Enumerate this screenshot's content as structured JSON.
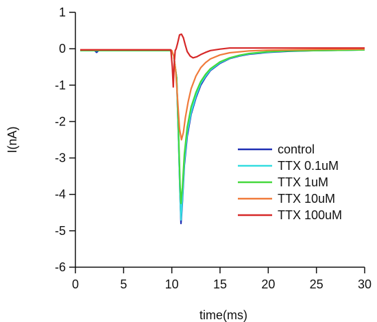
{
  "chart_data": {
    "type": "line",
    "title": "",
    "xlabel": "time(ms)",
    "ylabel": "I(nA)",
    "xlim": [
      0,
      30
    ],
    "ylim": [
      -6,
      1
    ],
    "x_ticks": [
      0,
      5,
      10,
      15,
      20,
      25,
      30
    ],
    "y_ticks": [
      1,
      0,
      -1,
      -2,
      -3,
      -4,
      -5,
      -6
    ],
    "grid": false,
    "legend_position": "right",
    "series": [
      {
        "name": "control",
        "color": "#1f2fb4",
        "x": [
          0.5,
          2.0,
          2.2,
          2.4,
          4.0,
          6.0,
          8.0,
          9.8,
          10.0,
          10.2,
          10.5,
          10.7,
          10.85,
          10.95,
          11.1,
          11.3,
          11.6,
          12.0,
          12.5,
          13.0,
          13.5,
          14.0,
          15.0,
          16.0,
          17.0,
          18.0,
          20.0,
          22.0,
          25.0,
          28.0,
          30.0
        ],
        "y": [
          -0.05,
          -0.05,
          -0.1,
          -0.05,
          -0.05,
          -0.05,
          -0.05,
          -0.05,
          -0.07,
          -0.2,
          -0.8,
          -2.5,
          -4.0,
          -4.8,
          -4.2,
          -3.2,
          -2.4,
          -1.8,
          -1.35,
          -1.0,
          -0.78,
          -0.6,
          -0.4,
          -0.27,
          -0.2,
          -0.15,
          -0.1,
          -0.07,
          -0.05,
          -0.04,
          -0.03
        ]
      },
      {
        "name": "TTX 0.1uM",
        "color": "#33dde0",
        "x": [
          0.5,
          4.0,
          8.0,
          9.8,
          10.0,
          10.2,
          10.5,
          10.7,
          10.85,
          10.95,
          11.1,
          11.3,
          11.6,
          12.0,
          12.5,
          13.0,
          13.5,
          14.0,
          15.0,
          16.0,
          17.0,
          18.0,
          20.0,
          22.0,
          25.0,
          28.0,
          30.0
        ],
        "y": [
          -0.05,
          -0.05,
          -0.05,
          -0.05,
          -0.07,
          -0.2,
          -0.8,
          -2.5,
          -4.0,
          -4.7,
          -4.1,
          -3.1,
          -2.3,
          -1.75,
          -1.3,
          -0.95,
          -0.75,
          -0.58,
          -0.38,
          -0.26,
          -0.19,
          -0.14,
          -0.09,
          -0.06,
          -0.05,
          -0.04,
          -0.03
        ]
      },
      {
        "name": "TTX 1uM",
        "color": "#44d83c",
        "x": [
          0.5,
          4.0,
          8.0,
          9.8,
          10.0,
          10.2,
          10.5,
          10.7,
          10.85,
          10.95,
          11.1,
          11.3,
          11.6,
          12.0,
          12.5,
          13.0,
          13.5,
          14.0,
          15.0,
          16.0,
          17.0,
          18.0,
          20.0,
          22.0,
          25.0,
          28.0,
          30.0
        ],
        "y": [
          -0.05,
          -0.05,
          -0.05,
          -0.05,
          -0.07,
          -0.2,
          -0.8,
          -2.3,
          -3.7,
          -4.25,
          -3.8,
          -2.9,
          -2.15,
          -1.6,
          -1.2,
          -0.9,
          -0.7,
          -0.55,
          -0.36,
          -0.25,
          -0.18,
          -0.13,
          -0.08,
          -0.06,
          -0.05,
          -0.04,
          -0.03
        ]
      },
      {
        "name": "TTX 10uM",
        "color": "#f07a3a",
        "x": [
          0.5,
          4.0,
          8.0,
          9.8,
          10.0,
          10.2,
          10.4,
          10.6,
          10.8,
          11.0,
          11.2,
          11.4,
          11.7,
          12.0,
          12.5,
          13.0,
          13.5,
          14.0,
          15.0,
          16.0,
          18.0,
          20.0,
          25.0,
          30.0
        ],
        "y": [
          -0.03,
          -0.03,
          -0.03,
          -0.03,
          -0.05,
          -0.2,
          -0.6,
          -1.4,
          -2.2,
          -2.5,
          -2.3,
          -1.9,
          -1.45,
          -1.1,
          -0.75,
          -0.52,
          -0.38,
          -0.28,
          -0.17,
          -0.11,
          -0.06,
          -0.04,
          -0.02,
          -0.01
        ]
      },
      {
        "name": "TTX 100uM",
        "color": "#d62828",
        "x": [
          0.5,
          4.0,
          8.0,
          9.9,
          10.05,
          10.15,
          10.25,
          10.35,
          10.45,
          10.6,
          10.8,
          11.0,
          11.2,
          11.4,
          11.6,
          11.9,
          12.2,
          12.6,
          13.0,
          13.5,
          14.0,
          15.0,
          16.0,
          18.0,
          20.0,
          25.0,
          30.0
        ],
        "y": [
          -0.03,
          -0.03,
          -0.03,
          -0.03,
          -0.5,
          -1.05,
          -0.4,
          -0.05,
          0.0,
          0.15,
          0.38,
          0.4,
          0.3,
          0.1,
          -0.08,
          -0.2,
          -0.25,
          -0.22,
          -0.16,
          -0.1,
          -0.05,
          -0.01,
          0.02,
          0.02,
          0.02,
          0.02,
          0.02
        ]
      }
    ]
  }
}
